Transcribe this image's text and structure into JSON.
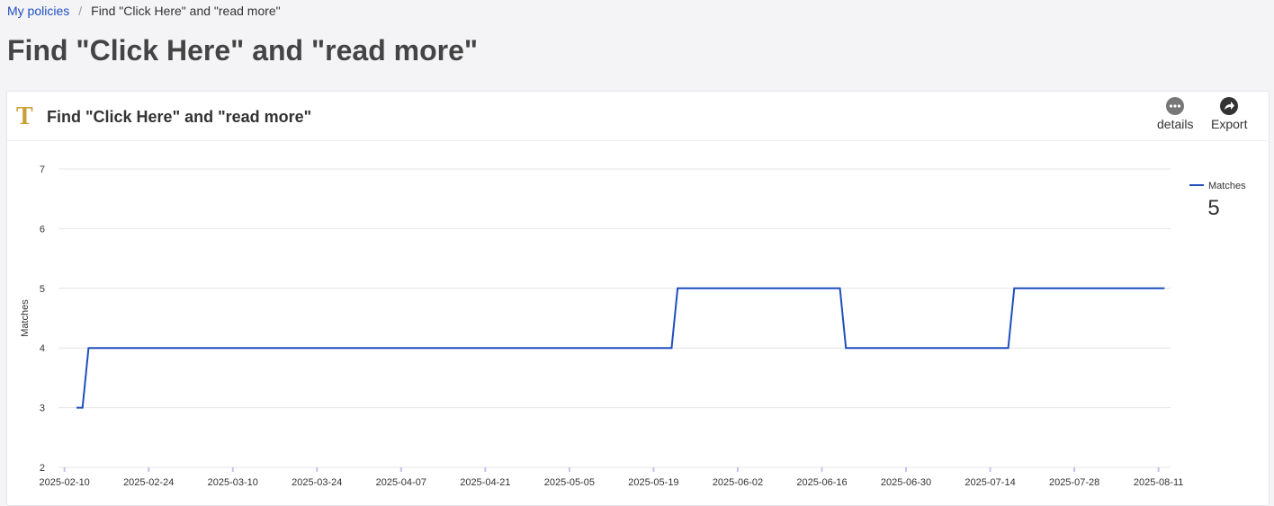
{
  "breadcrumb": {
    "link": "My policies",
    "separator": "/",
    "current": "Find \"Click Here\" and \"read more\""
  },
  "header": {
    "title": "Find \"Click Here\" and \"read more\""
  },
  "card": {
    "icon": "T",
    "title": "Find \"Click Here\" and \"read more\"",
    "buttons": [
      "details",
      "Export"
    ]
  },
  "chart_data": {
    "type": "line",
    "ylabel": "Matches",
    "x": [
      "2025-02-12",
      "2025-02-13",
      "2025-02-14",
      "2025-05-22",
      "2025-05-23",
      "2025-06-19",
      "2025-06-20",
      "2025-07-17",
      "2025-07-18",
      "2025-08-12"
    ],
    "series": [
      {
        "name": "Matches",
        "color": "#1f4fbf",
        "values": [
          3,
          3,
          4,
          4,
          5,
          5,
          4,
          4,
          5,
          5
        ],
        "legend_value": 5
      }
    ],
    "xlim": [
      "2025-02-09",
      "2025-08-13"
    ],
    "xticks": [
      "2025-02-10",
      "2025-02-24",
      "2025-03-10",
      "2025-03-24",
      "2025-04-07",
      "2025-04-21",
      "2025-05-05",
      "2025-05-19",
      "2025-06-02",
      "2025-06-16",
      "2025-06-30",
      "2025-07-14",
      "2025-07-28",
      "2025-08-11"
    ],
    "ylim": [
      2,
      7
    ],
    "yticks": [
      2,
      3,
      4,
      5,
      6,
      7
    ],
    "grid": true,
    "legend": "right"
  }
}
